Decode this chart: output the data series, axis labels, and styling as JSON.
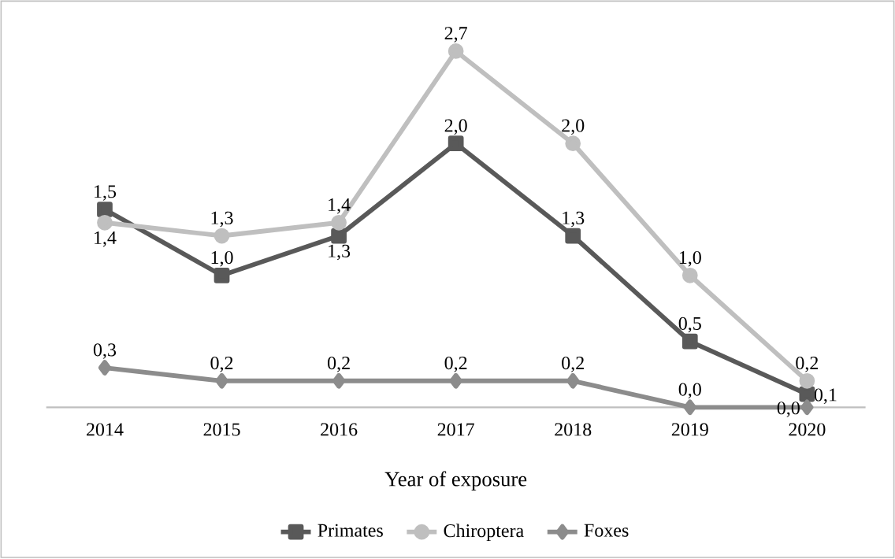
{
  "chart_data": {
    "type": "line",
    "xlabel": "Year of exposure",
    "categories": [
      "2014",
      "2015",
      "2016",
      "2017",
      "2018",
      "2019",
      "2020"
    ],
    "series": [
      {
        "name": "Primates",
        "color": "#595959",
        "marker": "square",
        "values": [
          1.5,
          1.0,
          1.3,
          2.0,
          1.3,
          0.5,
          0.1
        ],
        "value_labels": [
          "1,5",
          "1,0",
          "1,3",
          "2,0",
          "1,3",
          "0,5",
          "0,1"
        ]
      },
      {
        "name": "Chiroptera",
        "color": "#bfbfbf",
        "marker": "circle",
        "values": [
          1.4,
          1.3,
          1.4,
          2.7,
          2.0,
          1.0,
          0.2
        ],
        "value_labels": [
          "1,4",
          "1,3",
          "1,4",
          "2,7",
          "2,0",
          "1,0",
          "0,2"
        ]
      },
      {
        "name": "Foxes",
        "color": "#8c8c8c",
        "marker": "diamond",
        "values": [
          0.3,
          0.2,
          0.2,
          0.2,
          0.2,
          0.0,
          0.0
        ],
        "value_labels": [
          "0,3",
          "0,2",
          "0,2",
          "0,2",
          "0,2",
          "0,0",
          "0,0"
        ]
      }
    ],
    "legend": "bottom"
  }
}
